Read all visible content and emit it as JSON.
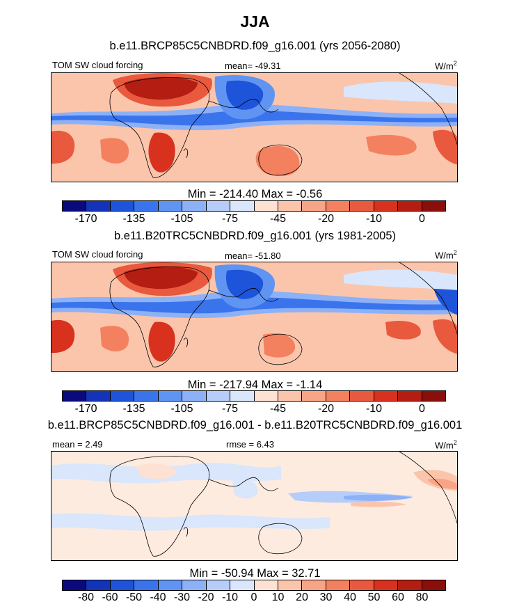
{
  "title": "JJA",
  "panels": [
    {
      "title": "b.e11.BRCP85C5CNBDRD.f09_g16.001 (yrs 2056-2080)",
      "left_label": "TOM SW cloud forcing",
      "center_label": "mean= -49.31",
      "units": "W/m",
      "units_exp": "2",
      "stats": "Min = -214.40 Max =  -0.56",
      "colorbar_labels": [
        "-170",
        "-135",
        "-105",
        "-75",
        "-45",
        "-20",
        "-10",
        "0"
      ]
    },
    {
      "title": "b.e11.B20TRC5CNBDRD.f09_g16.001 (yrs 1981-2005)",
      "left_label": "TOM SW cloud forcing",
      "center_label": "mean= -51.80",
      "units": "W/m",
      "units_exp": "2",
      "stats": "Min = -217.94 Max =  -1.14",
      "colorbar_labels": [
        "-170",
        "-135",
        "-105",
        "-75",
        "-45",
        "-20",
        "-10",
        "0"
      ]
    },
    {
      "title": "b.e11.BRCP85C5CNBDRD.f09_g16.001 - b.e11.B20TRC5CNBDRD.f09_g16.001",
      "left_label": "mean =   2.49",
      "center_label": "rmse =   6.43",
      "units": "W/m",
      "units_exp": "2",
      "stats": "Min = -50.94 Max =  32.71",
      "colorbar_labels": [
        "-80",
        "-60",
        "-50",
        "-40",
        "-30",
        "-20",
        "-10",
        "0",
        "10",
        "20",
        "30",
        "40",
        "50",
        "60",
        "80"
      ]
    }
  ],
  "colorbar_colors": [
    "#0a0a7d",
    "#1334b8",
    "#1d54d9",
    "#3a74ec",
    "#5f94f2",
    "#8db1f6",
    "#b5cdf8",
    "#d9e6fb",
    "#fde2d3",
    "#fbc5ac",
    "#f8a486",
    "#f38160",
    "#e9593e",
    "#d8321f",
    "#b41d12",
    "#8a0f0a"
  ]
}
